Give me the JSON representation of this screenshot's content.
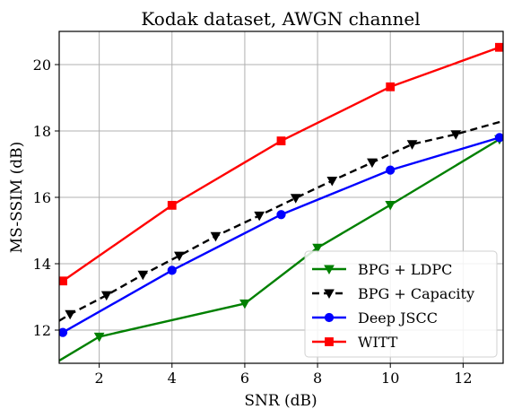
{
  "chart_data": {
    "type": "line",
    "title": "Kodak dataset, AWGN channel",
    "xlabel": "SNR (dB)",
    "ylabel": "MS-SSIM (dB)",
    "xlim": [
      0.9,
      13.1
    ],
    "ylim": [
      11.0,
      21.0
    ],
    "xticks": [
      2,
      4,
      6,
      8,
      10,
      12
    ],
    "yticks": [
      12,
      14,
      16,
      18,
      20
    ],
    "grid": true,
    "legend_position": "lower right",
    "series": [
      {
        "name": "BPG + LDPC",
        "color": "#008000",
        "line_style": "solid",
        "marker": "triangle-down",
        "x": [
          0.9,
          2,
          6,
          8,
          10,
          13
        ],
        "y": [
          11.08,
          11.8,
          12.8,
          14.48,
          15.77,
          17.75
        ],
        "marker_x": [
          2,
          6,
          8,
          10,
          13
        ]
      },
      {
        "name": "BPG + Capacity",
        "color": "#000000",
        "line_style": "dashed",
        "marker": "triangle-down",
        "x": [
          0.9,
          1.2,
          2.2,
          3.2,
          4.2,
          5.2,
          6.4,
          7.4,
          8.4,
          9.5,
          10.6,
          11.8,
          13.1
        ],
        "y": [
          12.28,
          12.48,
          13.05,
          13.67,
          14.24,
          14.83,
          15.45,
          15.98,
          16.5,
          17.05,
          17.6,
          17.9,
          18.3
        ],
        "marker_x": [
          1.2,
          2.2,
          3.2,
          4.2,
          5.2,
          6.4,
          7.4,
          8.4,
          9.5,
          10.6,
          11.8
        ]
      },
      {
        "name": "Deep JSCC",
        "color": "#0000ff",
        "line_style": "solid",
        "marker": "circle",
        "x": [
          1,
          4,
          7,
          10,
          13
        ],
        "y": [
          11.93,
          13.8,
          15.48,
          16.82,
          17.8
        ],
        "marker_x": [
          1,
          4,
          7,
          10,
          13
        ]
      },
      {
        "name": "WITT",
        "color": "#ff0000",
        "line_style": "solid",
        "marker": "square",
        "x": [
          1,
          4,
          7,
          10,
          13
        ],
        "y": [
          13.48,
          15.76,
          17.7,
          19.33,
          20.52
        ],
        "marker_x": [
          1,
          4,
          7,
          10,
          13
        ]
      }
    ]
  }
}
